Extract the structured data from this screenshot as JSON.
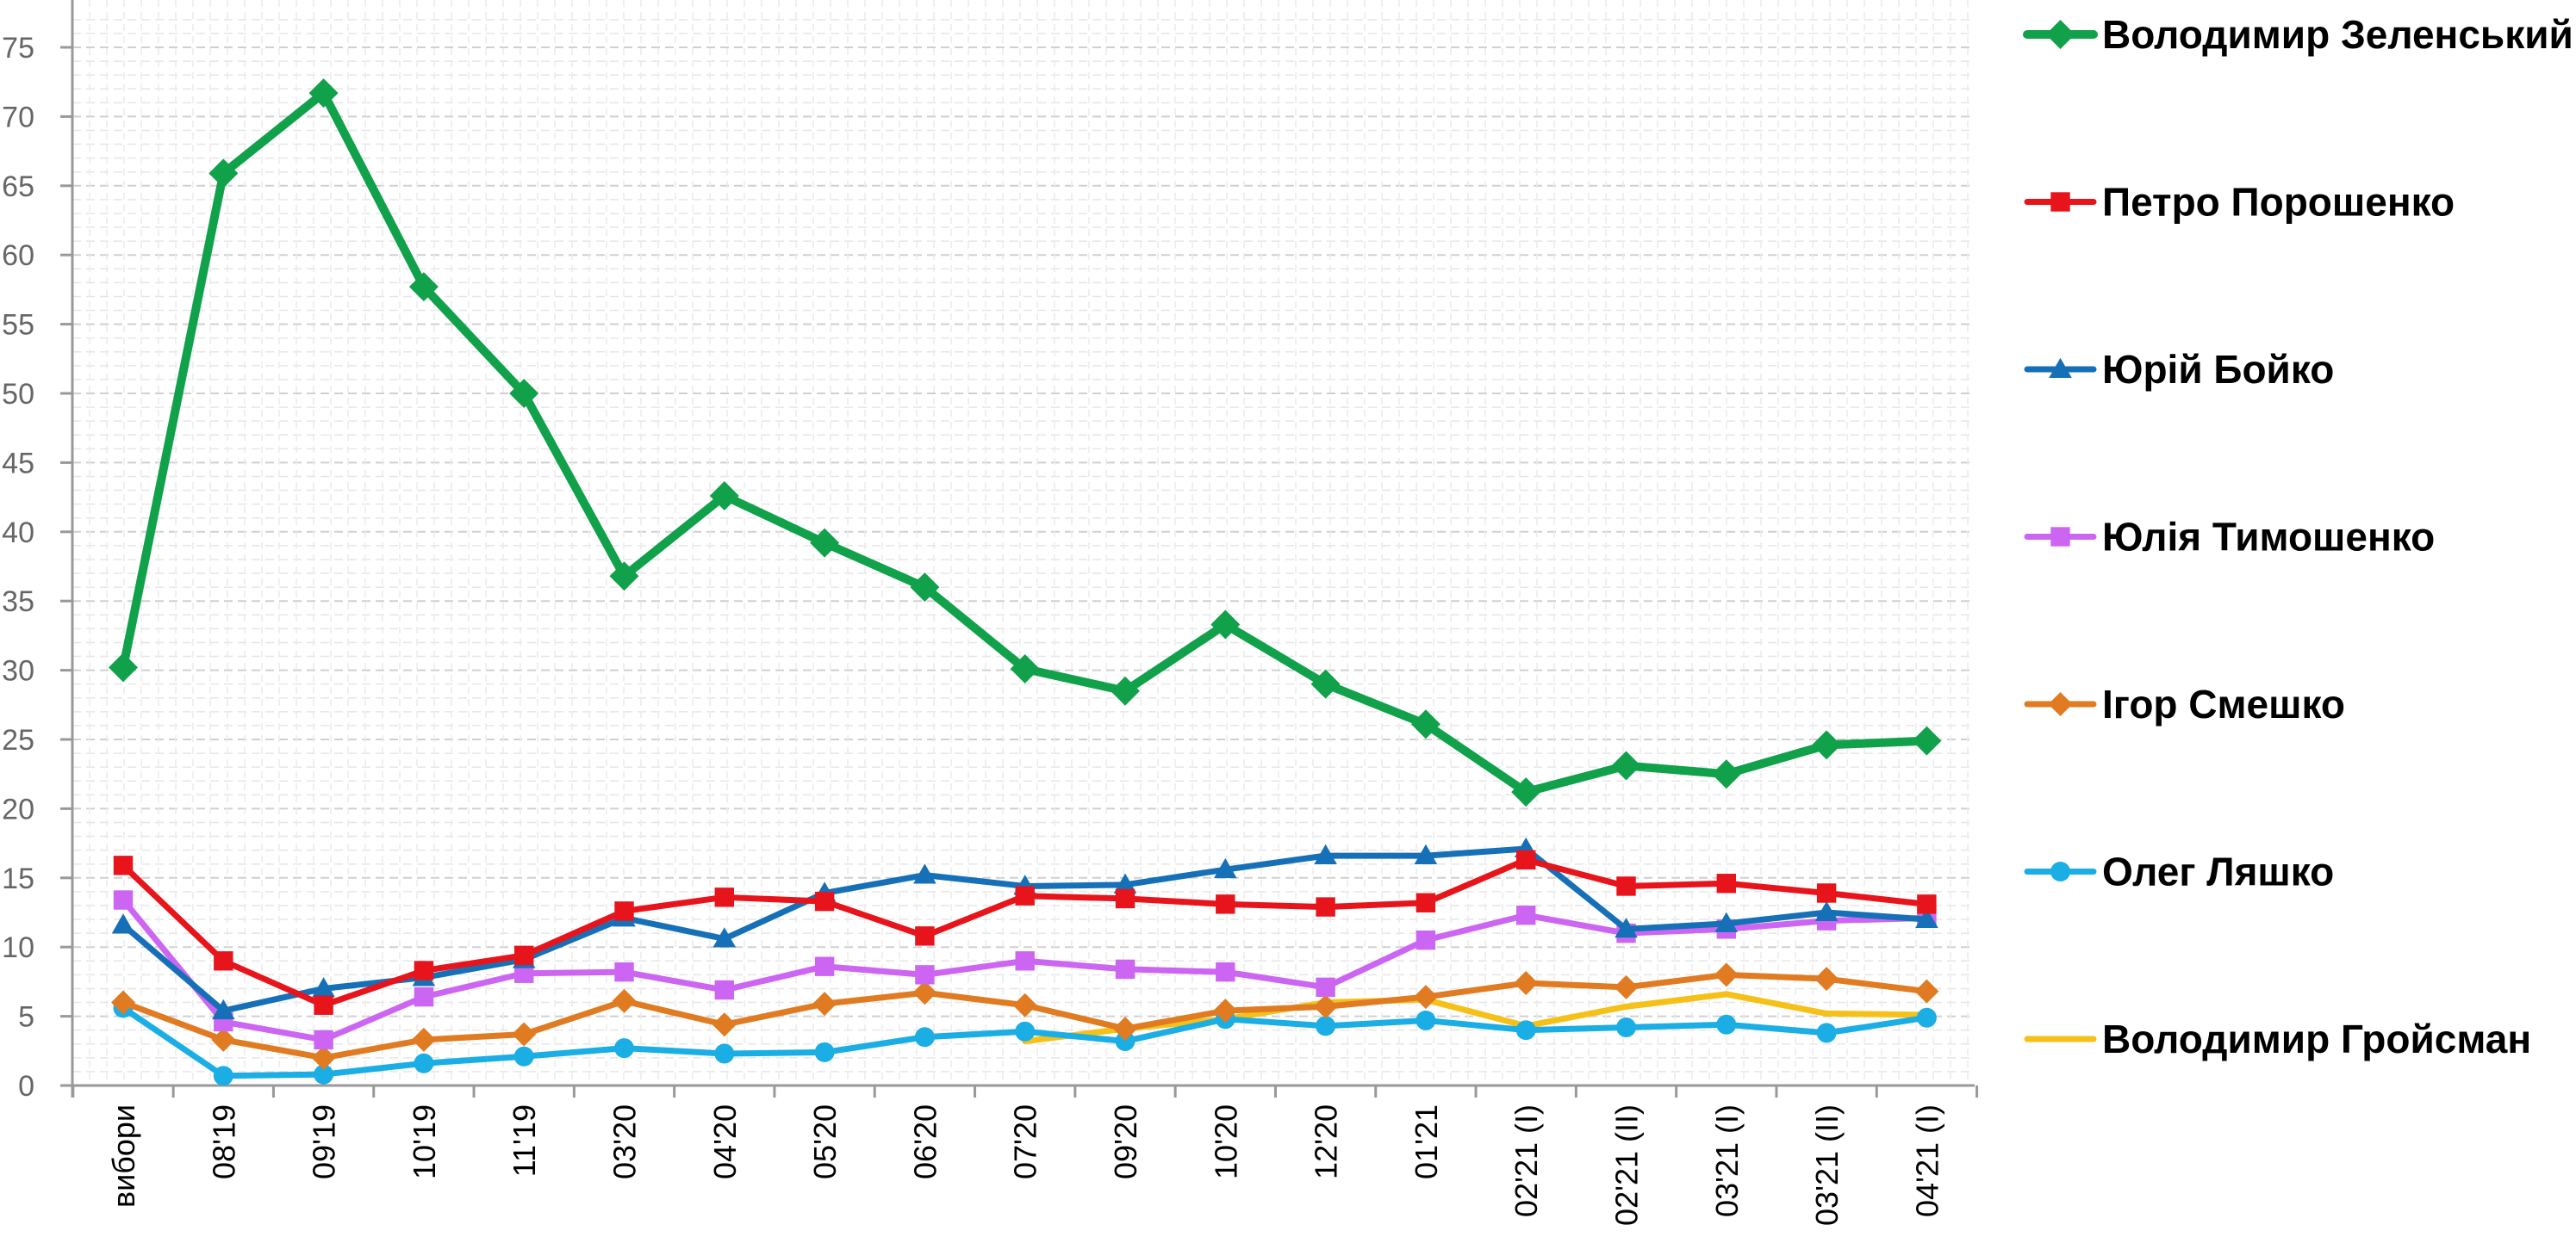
{
  "chart_data": {
    "type": "line",
    "title": "",
    "xlabel": "",
    "ylabel": "",
    "ylim": [
      0,
      75
    ],
    "y_ticks": [
      0,
      5,
      10,
      15,
      20,
      25,
      30,
      35,
      40,
      45,
      50,
      55,
      60,
      65,
      70,
      75
    ],
    "grid": true,
    "legend_position": "right",
    "categories": [
      "вибори",
      "08'19",
      "09'19",
      "10'19",
      "11'19",
      "03'20",
      "04'20",
      "05'20",
      "06'20",
      "07'20",
      "09'20",
      "10'20",
      "12'20",
      "01'21",
      "02'21 (I)",
      "02'21 (II)",
      "03'21 (I)",
      "03'21 (II)",
      "04'21 (I)"
    ],
    "series": [
      {
        "name": "Володимир Зеленський",
        "color": "#10a14a",
        "marker": "diamond",
        "values": [
          30.2,
          65.9,
          71.7,
          57.7,
          50.0,
          36.8,
          42.6,
          39.2,
          36.0,
          30.1,
          28.5,
          33.3,
          29.0,
          26.1,
          21.2,
          23.1,
          22.5,
          24.6,
          24.9
        ]
      },
      {
        "name": "Петро Порошенко",
        "color": "#e8141b",
        "marker": "square",
        "values": [
          15.9,
          9.0,
          5.8,
          8.3,
          9.4,
          12.6,
          13.6,
          13.3,
          10.8,
          13.7,
          13.5,
          13.1,
          12.9,
          13.2,
          16.3,
          14.4,
          14.6,
          13.9,
          13.1
        ]
      },
      {
        "name": "Юрій Бойко",
        "color": "#1670b8",
        "marker": "triangle",
        "values": [
          11.6,
          5.4,
          7.0,
          7.8,
          9.1,
          12.1,
          10.6,
          13.9,
          15.2,
          14.4,
          14.5,
          15.6,
          16.6,
          16.6,
          17.1,
          11.3,
          11.7,
          12.5,
          12.0
        ]
      },
      {
        "name": "Юлія Тимошенко",
        "color": "#cc66f2",
        "marker": "square",
        "values": [
          13.4,
          4.6,
          3.3,
          6.4,
          8.1,
          8.2,
          6.9,
          8.6,
          8.0,
          9.0,
          8.4,
          8.2,
          7.1,
          10.5,
          12.3,
          11.0,
          11.3,
          11.9,
          12.1
        ]
      },
      {
        "name": "Ігор Смешко",
        "color": "#e07b22",
        "marker": "diamond",
        "values": [
          6.0,
          3.3,
          2.0,
          3.3,
          3.7,
          6.1,
          4.4,
          5.9,
          6.7,
          5.8,
          4.1,
          5.4,
          5.7,
          6.4,
          7.4,
          7.1,
          8.0,
          7.7,
          6.8
        ]
      },
      {
        "name": "Олег Ляшко",
        "color": "#1aaee5",
        "marker": "circle",
        "values": [
          5.6,
          0.7,
          0.8,
          1.6,
          2.1,
          2.7,
          2.3,
          2.4,
          3.5,
          3.9,
          3.2,
          4.8,
          4.3,
          4.7,
          4.0,
          4.2,
          4.4,
          3.8,
          4.9
        ]
      },
      {
        "name": "Володимир Гройсман",
        "color": "#f5c118",
        "marker": "none",
        "values": [
          null,
          null,
          null,
          null,
          null,
          null,
          null,
          null,
          null,
          3.2,
          4.1,
          4.8,
          6.0,
          6.2,
          4.3,
          5.7,
          6.6,
          5.2,
          5.1
        ]
      }
    ]
  }
}
